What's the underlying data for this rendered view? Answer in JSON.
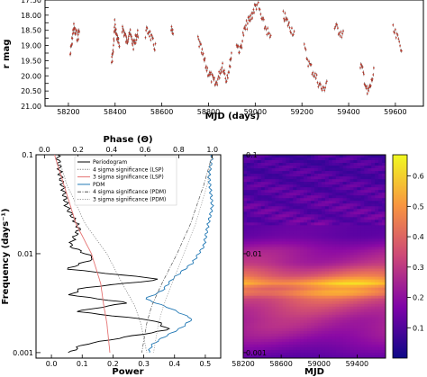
{
  "chart_data": [
    {
      "type": "scatter",
      "xlabel": "MJD (days)",
      "ylabel": "r mag",
      "xlim": [
        58100,
        59720
      ],
      "ylim": [
        21.0,
        17.5
      ],
      "y_inverted": true,
      "xticks": [
        58200,
        58400,
        58600,
        58800,
        59000,
        59200,
        59400,
        59600
      ],
      "yticks": [
        "17.50",
        "17.75",
        "18.00",
        "18.25",
        "18.50",
        "18.75",
        "19.00",
        "19.25",
        "19.50",
        "19.75",
        "20.00",
        "20.25",
        "20.50",
        "20.75",
        "21.00"
      ],
      "marker_color": "#c0392b",
      "segments": [
        {
          "mjd": [
            58208,
            58215,
            58222,
            58230,
            58240,
            58248
          ],
          "mag": [
            19.3,
            18.9,
            18.4,
            18.6,
            18.7,
            18.5
          ]
        },
        {
          "mjd": [
            58385,
            58392,
            58398,
            58405,
            58412,
            58420
          ],
          "mag": [
            19.5,
            19.2,
            18.3,
            18.6,
            18.9,
            19.0
          ]
        },
        {
          "mjd": [
            58430,
            58440,
            58450,
            58460,
            58470,
            58480,
            58490,
            58500
          ],
          "mag": [
            18.4,
            18.6,
            18.9,
            18.5,
            18.8,
            19.0,
            18.7,
            18.6
          ]
        },
        {
          "mjd": [
            58530,
            58545,
            58560,
            58575
          ],
          "mag": [
            18.6,
            18.5,
            18.9,
            19.1
          ]
        },
        {
          "mjd": [
            58640,
            58650
          ],
          "mag": [
            18.5,
            18.7
          ]
        },
        {
          "mjd": [
            58755,
            58770,
            58785,
            58800,
            58815,
            58830,
            58845,
            58860,
            58875,
            58890,
            58900
          ],
          "mag": [
            18.8,
            19.2,
            19.6,
            19.9,
            20.1,
            20.3,
            20.0,
            19.6,
            20.1,
            19.7,
            19.2
          ]
        },
        {
          "mjd": [
            58920,
            58935,
            58950,
            58965,
            58980,
            58995,
            59010,
            59030,
            59050,
            59070
          ],
          "mag": [
            18.9,
            19.2,
            18.6,
            18.3,
            18.1,
            17.8,
            17.6,
            18.2,
            18.5,
            18.9
          ]
        },
        {
          "mjd": [
            59120,
            59135,
            59150,
            59170
          ],
          "mag": [
            18.0,
            18.2,
            18.4,
            18.6
          ]
        },
        {
          "mjd": [
            59210,
            59230,
            59250,
            59270,
            59290,
            59310
          ],
          "mag": [
            19.1,
            19.6,
            19.9,
            20.2,
            20.5,
            20.1
          ]
        },
        {
          "mjd": [
            59340,
            59360,
            59380
          ],
          "mag": [
            18.4,
            18.5,
            18.7
          ]
        },
        {
          "mjd": [
            59450,
            59465,
            59480,
            59495,
            59510
          ],
          "mag": [
            19.6,
            20.0,
            20.6,
            20.3,
            19.8
          ]
        },
        {
          "mjd": [
            59590,
            59610,
            59630
          ],
          "mag": [
            18.5,
            18.8,
            19.1
          ]
        }
      ]
    },
    {
      "type": "line",
      "xlabel": "Power",
      "x2label": "Phase (Θ)",
      "ylabel": "Frequency (days⁻¹)",
      "y_scale": "log",
      "xlim": [
        -0.05,
        0.55
      ],
      "x2lim": [
        -0.05,
        1.05
      ],
      "ylim": [
        0.00088,
        0.1
      ],
      "xticks": [
        "0.0",
        "0.1",
        "0.2",
        "0.3",
        "0.4",
        "0.5"
      ],
      "x2ticks": [
        "0.0",
        "0.2",
        "0.4",
        "0.6",
        "0.8",
        "1.0"
      ],
      "yticks": [
        "0.001",
        "0.01",
        "0.1"
      ],
      "legend_position": "top-right",
      "series": [
        {
          "name": "Periodogram",
          "axis": "power",
          "color": "#000000",
          "style": "solid",
          "freq": [
            0.1,
            0.06,
            0.03,
            0.018,
            0.012,
            0.009,
            0.007,
            0.0055,
            0.0045,
            0.0038,
            0.0032,
            0.0026,
            0.0021,
            0.0017,
            0.0014,
            0.0012,
            0.001
          ],
          "value": [
            0.02,
            0.03,
            0.05,
            0.09,
            0.06,
            0.14,
            0.05,
            0.36,
            0.1,
            0.06,
            0.25,
            0.08,
            0.34,
            0.38,
            0.22,
            0.1,
            0.06
          ]
        },
        {
          "name": "4 sigma significance (LSP)",
          "axis": "power",
          "color": "#777777",
          "style": "dotted",
          "freq": [
            0.1,
            0.05,
            0.02,
            0.01,
            0.005,
            0.003,
            0.002,
            0.001
          ],
          "value": [
            0.02,
            0.05,
            0.11,
            0.18,
            0.23,
            0.27,
            0.29,
            0.31
          ]
        },
        {
          "name": "3 sigma significance (LSP)",
          "axis": "power",
          "color": "#e57373",
          "style": "solid",
          "freq": [
            0.1,
            0.05,
            0.02,
            0.01,
            0.005,
            0.003,
            0.002,
            0.001
          ],
          "value": [
            0.01,
            0.04,
            0.08,
            0.13,
            0.16,
            0.17,
            0.18,
            0.19
          ]
        },
        {
          "name": "PDM",
          "axis": "phase",
          "color": "#1f77b4",
          "style": "solid",
          "freq": [
            0.1,
            0.06,
            0.03,
            0.018,
            0.012,
            0.008,
            0.0055,
            0.0042,
            0.0035,
            0.0028,
            0.0022,
            0.0018,
            0.0014,
            0.0012,
            0.001
          ],
          "value": [
            1.0,
            0.98,
            1.0,
            0.97,
            0.95,
            0.88,
            0.76,
            0.7,
            0.6,
            0.75,
            0.88,
            0.82,
            0.7,
            0.64,
            0.62
          ]
        },
        {
          "name": "4 sigma significance (PDM)",
          "axis": "phase",
          "color": "#555555",
          "style": "dashdot",
          "freq": [
            0.1,
            0.05,
            0.02,
            0.01,
            0.005,
            0.003,
            0.002,
            0.001
          ],
          "value": [
            1.0,
            0.95,
            0.87,
            0.79,
            0.7,
            0.64,
            0.61,
            0.58
          ]
        },
        {
          "name": "3 sigma significance (PDM)",
          "axis": "phase",
          "color": "#999999",
          "style": "dotted",
          "freq": [
            0.1,
            0.05,
            0.02,
            0.01,
            0.005,
            0.003,
            0.002,
            0.001
          ],
          "value": [
            1.0,
            0.97,
            0.9,
            0.83,
            0.76,
            0.71,
            0.68,
            0.65
          ]
        }
      ]
    },
    {
      "type": "heatmap",
      "xlabel": "MJD",
      "ylabel": "",
      "y_scale": "log",
      "xlim": [
        58200,
        59700
      ],
      "ylim": [
        0.00088,
        0.1
      ],
      "xticks": [
        "58200",
        "58600",
        "59000",
        "59400"
      ],
      "yticks": [
        "0.001",
        "0.01",
        "0.1"
      ],
      "colormap": "plasma",
      "colorbar_ticks": [
        "0.1",
        "0.2",
        "0.3",
        "0.4",
        "0.5",
        "0.6"
      ],
      "colorbar_range": [
        0,
        0.67
      ],
      "band_profile": {
        "freq": [
          0.1,
          0.05,
          0.025,
          0.015,
          0.011,
          0.008,
          0.006,
          0.005,
          0.0045,
          0.004,
          0.0035,
          0.0028,
          0.0022,
          0.0018,
          0.0015,
          0.0013,
          0.0011,
          0.00088
        ],
        "amplitude": [
          0.08,
          0.1,
          0.12,
          0.14,
          0.25,
          0.3,
          0.45,
          0.62,
          0.5,
          0.55,
          0.42,
          0.35,
          0.3,
          0.28,
          0.25,
          0.22,
          0.18,
          0.12
        ]
      }
    }
  ]
}
